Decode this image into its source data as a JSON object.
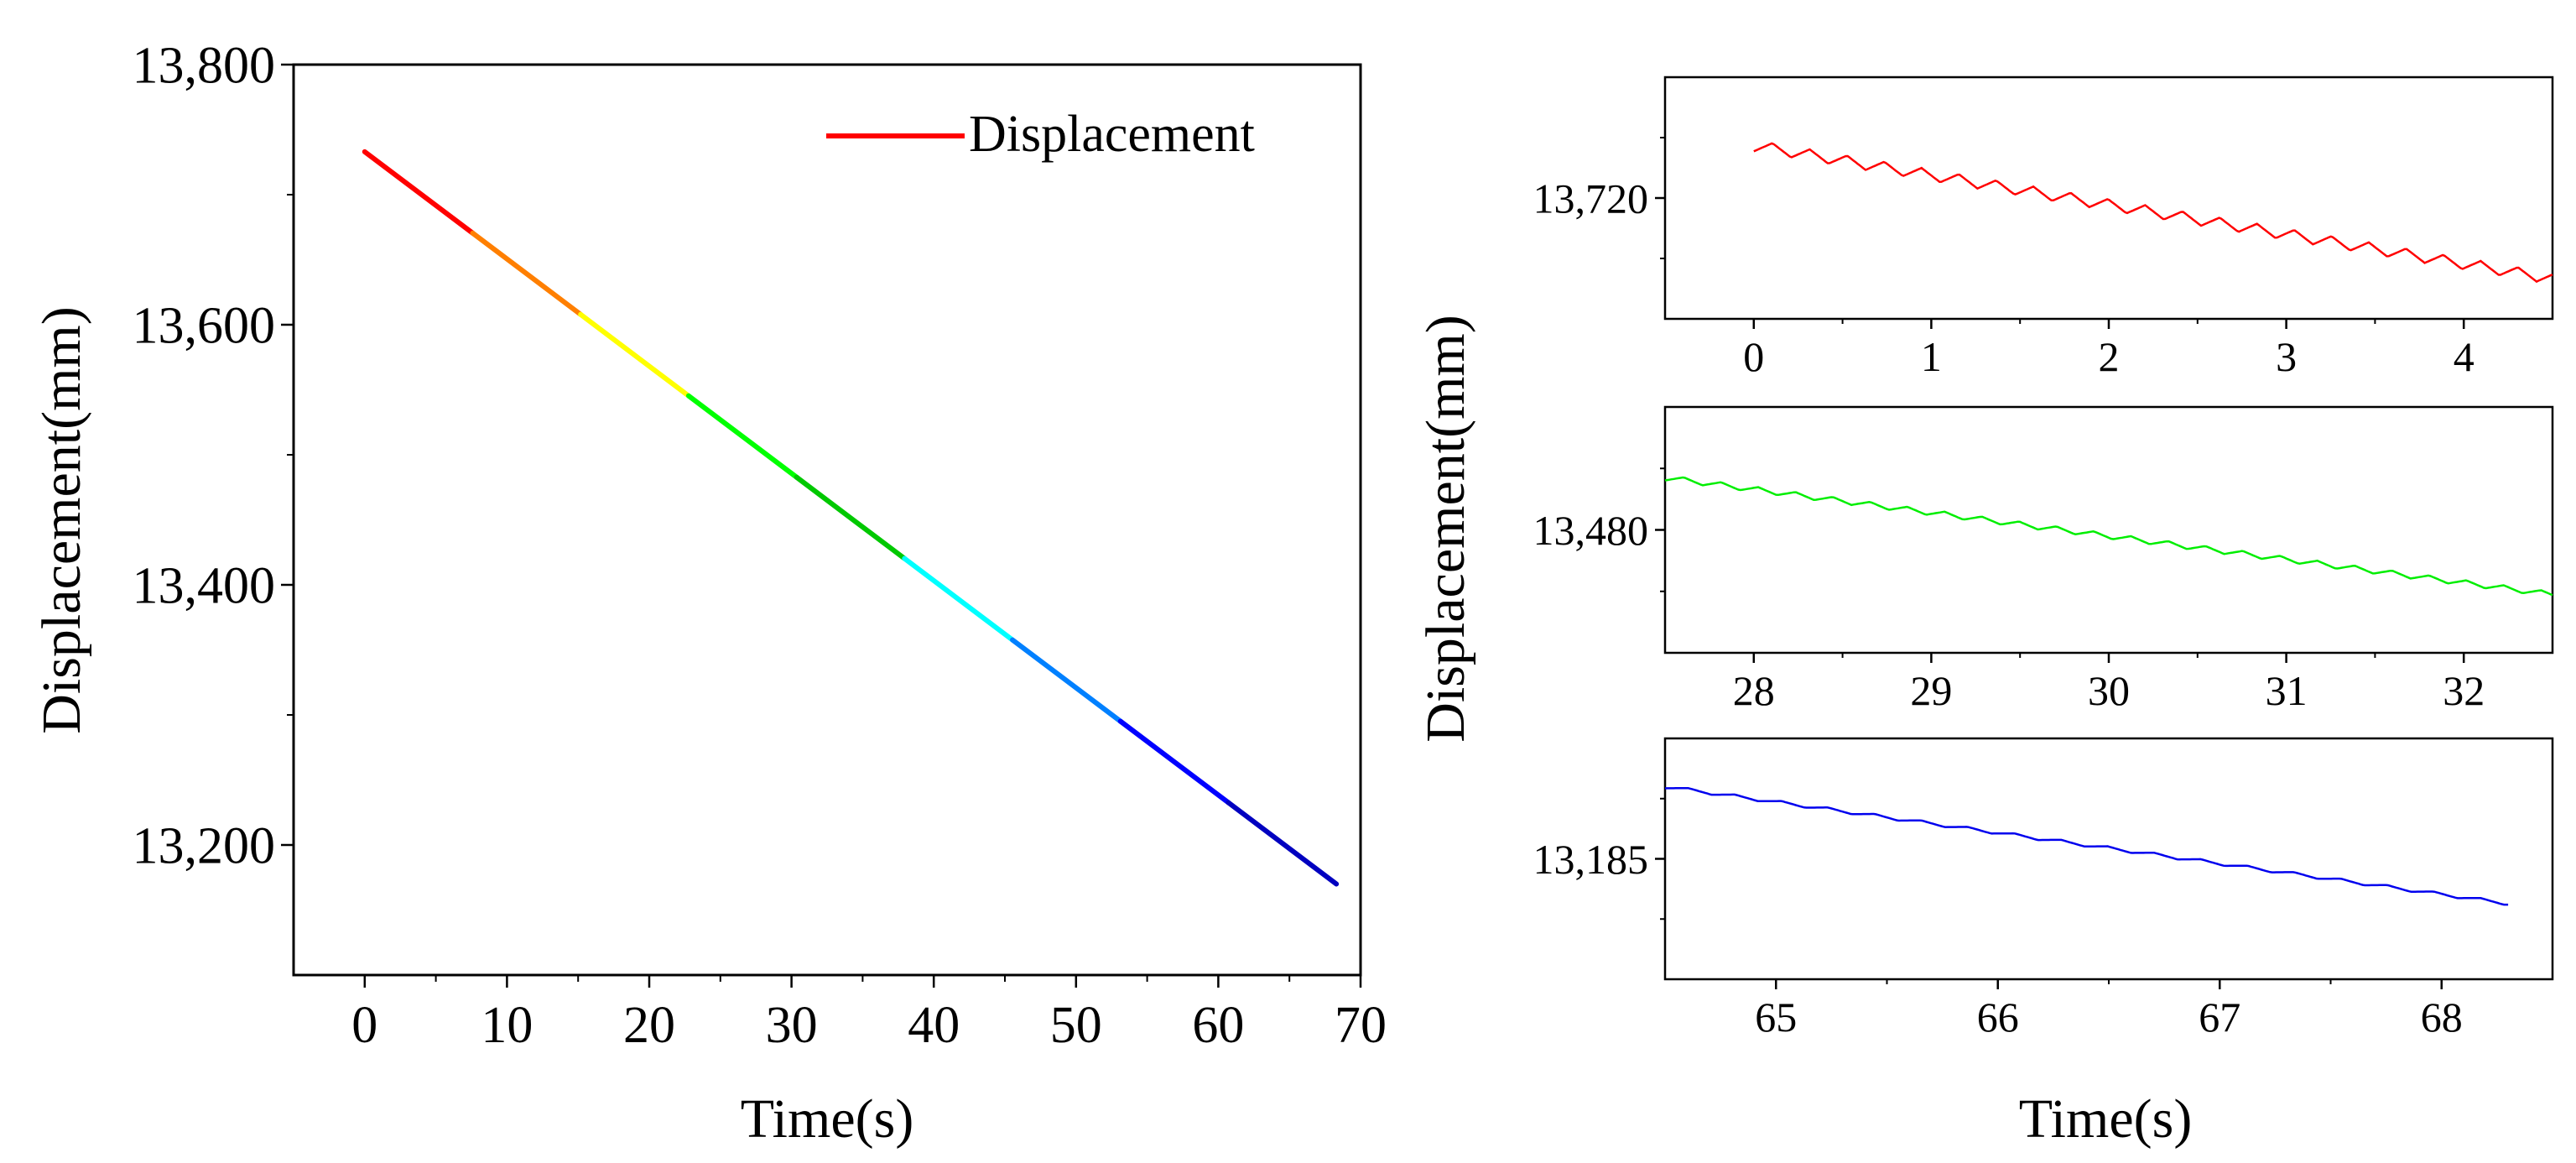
{
  "chart_data": [
    {
      "id": "main",
      "type": "line",
      "xlabel": "Time(s)",
      "ylabel": "Displacement(mm)",
      "xlim": [
        -5,
        70
      ],
      "ylim": [
        13100,
        13800
      ],
      "xticks": [
        0,
        10,
        20,
        30,
        40,
        50,
        60,
        70
      ],
      "xtick_labels": [
        "0",
        "10",
        "20",
        "30",
        "40",
        "50",
        "60",
        "70"
      ],
      "yticks": [
        13200,
        13400,
        13600,
        13800
      ],
      "ytick_labels": [
        "13,200",
        "13,400",
        "13,600",
        "13,800"
      ],
      "legend": {
        "label": "Displacement",
        "color": "#ff0000",
        "position": "top-right"
      },
      "series": [
        {
          "name": "Displacement",
          "x_start": 0,
          "x_end": 68.3,
          "y_start": 13733,
          "y_end": 13170,
          "gradient_colors": [
            "#ff0000",
            "#ff7f00",
            "#ffff00",
            "#00ff00",
            "#00c800",
            "#00ffff",
            "#0080ff",
            "#0000ff",
            "#0000c0"
          ]
        }
      ]
    },
    {
      "id": "zoom-top",
      "type": "line",
      "xlim": [
        -0.5,
        4.5
      ],
      "ylim": [
        13690,
        13750
      ],
      "xticks": [
        0,
        1,
        2,
        3,
        4
      ],
      "xtick_labels": [
        "0",
        "1",
        "2",
        "3",
        "4"
      ],
      "yticks": [
        13720
      ],
      "ytick_labels": [
        "13,720"
      ],
      "series": [
        {
          "name": "Displacement",
          "color": "#ff0000",
          "x_start": 0,
          "x_end": 4.5,
          "y_start": 13733,
          "y_end": 13700,
          "ripple_amp": 1.4,
          "ripple_period": 0.21
        }
      ]
    },
    {
      "id": "zoom-middle",
      "type": "line",
      "xlim": [
        27.5,
        32.5
      ],
      "ylim": [
        13440,
        13520
      ],
      "xticks": [
        28,
        29,
        30,
        31,
        32
      ],
      "xtick_labels": [
        "28",
        "29",
        "30",
        "31",
        "32"
      ],
      "yticks": [
        13480
      ],
      "ytick_labels": [
        "13,480"
      ],
      "series": [
        {
          "name": "Displacement",
          "color": "#00ee00",
          "x_start": 27.5,
          "x_end": 32.5,
          "y_start": 13497,
          "y_end": 13459,
          "ripple_amp": 0.9,
          "ripple_period": 0.21
        }
      ]
    },
    {
      "id": "zoom-bottom",
      "type": "line",
      "xlim": [
        64.5,
        68.5
      ],
      "ylim": [
        13150,
        13220
      ],
      "xticks": [
        65,
        66,
        67,
        68
      ],
      "xtick_labels": [
        "65",
        "66",
        "67",
        "68"
      ],
      "yticks": [
        13185
      ],
      "ytick_labels": [
        "13,185"
      ],
      "series": [
        {
          "name": "Displacement",
          "color": "#0000ee",
          "x_start": 64.5,
          "x_end": 68.3,
          "y_start": 13206,
          "y_end": 13172,
          "ripple_amp": 0.5,
          "ripple_period": 0.21
        }
      ]
    }
  ],
  "right_ylabel": "Displacement(mm)",
  "right_xlabel": "Time(s)"
}
